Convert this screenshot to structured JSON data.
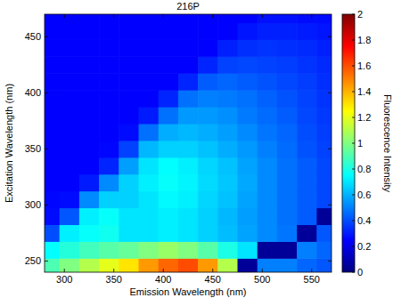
{
  "chart_data": {
    "type": "heatmap",
    "title": "216P",
    "x_label": "Emission Wavelength (nm)",
    "y_label": "Excitation Wavelength (nm)",
    "x": [
      285,
      305,
      325,
      345,
      365,
      385,
      405,
      425,
      445,
      465,
      485,
      505,
      525,
      545,
      565
    ],
    "y": [
      245,
      260,
      275,
      290,
      305,
      320,
      335,
      350,
      365,
      380,
      395,
      410,
      425,
      440,
      455,
      470
    ],
    "values": [
      [
        0.9,
        1.0,
        1.1,
        1.2,
        1.3,
        1.45,
        1.55,
        1.6,
        1.45,
        1.1,
        0.05,
        0.5,
        0.5,
        0.45,
        0.42
      ],
      [
        0.75,
        0.82,
        0.88,
        0.92,
        0.95,
        1.0,
        1.05,
        1.0,
        0.92,
        0.8,
        0.7,
        0.05,
        0.05,
        0.5,
        0.45
      ],
      [
        0.4,
        0.72,
        0.76,
        0.78,
        0.7,
        0.7,
        0.72,
        0.7,
        0.66,
        0.62,
        0.57,
        0.52,
        0.48,
        0.05,
        0.42
      ],
      [
        0.27,
        0.42,
        0.72,
        0.76,
        0.7,
        0.7,
        0.72,
        0.7,
        0.66,
        0.61,
        0.56,
        0.52,
        0.47,
        0.43,
        0.05
      ],
      [
        0.26,
        0.27,
        0.52,
        0.66,
        0.66,
        0.7,
        0.74,
        0.72,
        0.67,
        0.63,
        0.57,
        0.52,
        0.47,
        0.43,
        0.39
      ],
      [
        0.25,
        0.25,
        0.3,
        0.52,
        0.66,
        0.72,
        0.76,
        0.73,
        0.68,
        0.64,
        0.58,
        0.52,
        0.47,
        0.43,
        0.39
      ],
      [
        0.25,
        0.25,
        0.25,
        0.32,
        0.56,
        0.7,
        0.75,
        0.72,
        0.67,
        0.63,
        0.57,
        0.52,
        0.47,
        0.43,
        0.39
      ],
      [
        0.25,
        0.25,
        0.25,
        0.26,
        0.38,
        0.61,
        0.66,
        0.66,
        0.63,
        0.59,
        0.55,
        0.5,
        0.46,
        0.41,
        0.38
      ],
      [
        0.25,
        0.25,
        0.25,
        0.25,
        0.27,
        0.47,
        0.59,
        0.61,
        0.59,
        0.56,
        0.52,
        0.48,
        0.45,
        0.4,
        0.37
      ],
      [
        0.25,
        0.25,
        0.25,
        0.25,
        0.25,
        0.3,
        0.47,
        0.55,
        0.55,
        0.53,
        0.49,
        0.46,
        0.43,
        0.39,
        0.36
      ],
      [
        0.25,
        0.25,
        0.25,
        0.25,
        0.25,
        0.25,
        0.32,
        0.47,
        0.5,
        0.49,
        0.47,
        0.44,
        0.41,
        0.38,
        0.35
      ],
      [
        0.25,
        0.25,
        0.25,
        0.25,
        0.25,
        0.25,
        0.25,
        0.32,
        0.43,
        0.45,
        0.43,
        0.41,
        0.39,
        0.37,
        0.34
      ],
      [
        0.25,
        0.25,
        0.25,
        0.25,
        0.25,
        0.25,
        0.25,
        0.25,
        0.32,
        0.38,
        0.39,
        0.38,
        0.37,
        0.35,
        0.33
      ],
      [
        0.25,
        0.25,
        0.25,
        0.25,
        0.25,
        0.25,
        0.25,
        0.25,
        0.25,
        0.31,
        0.34,
        0.35,
        0.34,
        0.33,
        0.31
      ],
      [
        0.25,
        0.25,
        0.25,
        0.25,
        0.25,
        0.25,
        0.25,
        0.25,
        0.25,
        0.25,
        0.29,
        0.31,
        0.31,
        0.3,
        0.29
      ],
      [
        0.25,
        0.25,
        0.25,
        0.25,
        0.25,
        0.25,
        0.25,
        0.25,
        0.25,
        0.25,
        0.25,
        0.28,
        0.28,
        0.27,
        0.27
      ]
    ],
    "xlim": [
      280,
      570
    ],
    "ylim": [
      240,
      470
    ],
    "xticks": [
      300,
      350,
      400,
      450,
      500,
      550
    ],
    "yticks": [
      250,
      300,
      350,
      400,
      450
    ],
    "colorbar": {
      "label": "Fluorescence Intensity",
      "range": [
        0,
        2
      ],
      "ticks": [
        0,
        0.2,
        0.4,
        0.6,
        0.8,
        1,
        1.2,
        1.4,
        1.6,
        1.8,
        2
      ]
    }
  }
}
